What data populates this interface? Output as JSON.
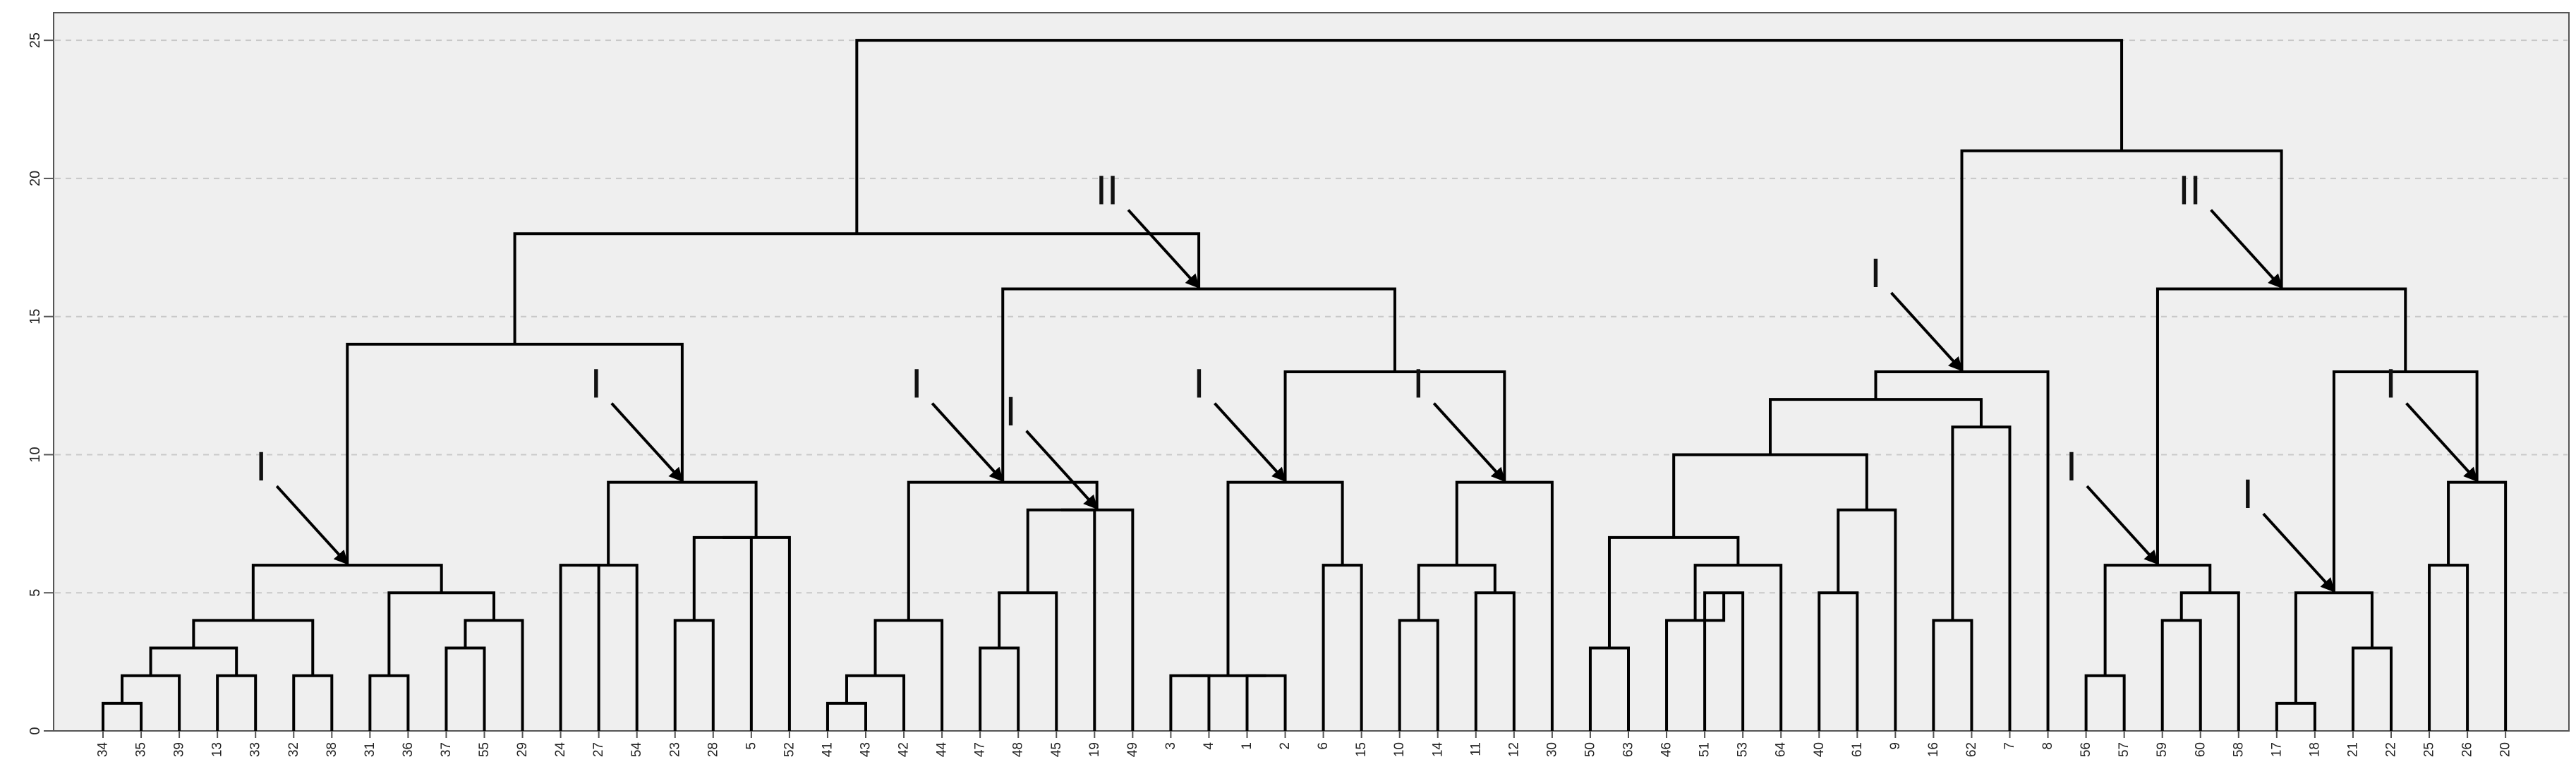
{
  "chart_data": {
    "type": "dendrogram",
    "title": "",
    "xlabel": "",
    "ylabel": "",
    "ylim": [
      0,
      26
    ],
    "y_ticks": [
      0,
      5,
      10,
      15,
      20,
      25
    ],
    "grid": true,
    "background": "#efefef",
    "line_color": "#000000",
    "grid_color": "#c8c8c8",
    "leaves": [
      "34",
      "35",
      "39",
      "13",
      "33",
      "32",
      "38",
      "31",
      "36",
      "37",
      "55",
      "29",
      "24",
      "27",
      "54",
      "23",
      "28",
      "5",
      "52",
      "41",
      "43",
      "42",
      "44",
      "47",
      "48",
      "45",
      "19",
      "49",
      "3",
      "4",
      "1",
      "2",
      "6",
      "15",
      "10",
      "14",
      "11",
      "12",
      "30",
      "50",
      "63",
      "46",
      "51",
      "53",
      "64",
      "40",
      "61",
      "9",
      "16",
      "62",
      "7",
      "8",
      "56",
      "57",
      "59",
      "60",
      "58",
      "17",
      "18",
      "21",
      "22",
      "25",
      "26",
      "20"
    ],
    "merges": [
      {
        "id": "a1",
        "children": [
          "34",
          "35"
        ],
        "height": 1
      },
      {
        "id": "a2",
        "children": [
          "a1",
          "39"
        ],
        "height": 2
      },
      {
        "id": "a3",
        "children": [
          "13",
          "33"
        ],
        "height": 2
      },
      {
        "id": "a4",
        "children": [
          "a2",
          "a3"
        ],
        "height": 3
      },
      {
        "id": "a5",
        "children": [
          "32",
          "38"
        ],
        "height": 2
      },
      {
        "id": "a6",
        "children": [
          "a4",
          "a5"
        ],
        "height": 4
      },
      {
        "id": "a7",
        "children": [
          "31",
          "36"
        ],
        "height": 2
      },
      {
        "id": "a8",
        "children": [
          "37",
          "55"
        ],
        "height": 3
      },
      {
        "id": "a9",
        "children": [
          "a8",
          "29"
        ],
        "height": 4
      },
      {
        "id": "a10",
        "children": [
          "a7",
          "a9"
        ],
        "height": 5
      },
      {
        "id": "A",
        "children": [
          "a6",
          "a10"
        ],
        "height": 6
      },
      {
        "id": "b1",
        "children": [
          "24",
          "27"
        ],
        "height": 6
      },
      {
        "id": "b2",
        "children": [
          "b1",
          "54"
        ],
        "height": 6
      },
      {
        "id": "b3",
        "children": [
          "23",
          "28"
        ],
        "height": 4
      },
      {
        "id": "b4",
        "children": [
          "b3",
          "5"
        ],
        "height": 7
      },
      {
        "id": "b5",
        "children": [
          "b4",
          "52"
        ],
        "height": 7
      },
      {
        "id": "B",
        "children": [
          "b2",
          "b5"
        ],
        "height": 9
      },
      {
        "id": "L",
        "children": [
          "A",
          "B"
        ],
        "height": 14
      },
      {
        "id": "c1",
        "children": [
          "41",
          "43"
        ],
        "height": 1
      },
      {
        "id": "c2",
        "children": [
          "c1",
          "42"
        ],
        "height": 2
      },
      {
        "id": "c3",
        "children": [
          "c2",
          "44"
        ],
        "height": 4
      },
      {
        "id": "c4",
        "children": [
          "47",
          "48"
        ],
        "height": 3
      },
      {
        "id": "c5",
        "children": [
          "c4",
          "45"
        ],
        "height": 5
      },
      {
        "id": "c6",
        "children": [
          "c5",
          "19"
        ],
        "height": 8
      },
      {
        "id": "c7",
        "children": [
          "c6",
          "49"
        ],
        "height": 8
      },
      {
        "id": "C",
        "children": [
          "c3",
          "c7"
        ],
        "height": 9
      },
      {
        "id": "d1",
        "children": [
          "3",
          "4"
        ],
        "height": 2
      },
      {
        "id": "d2",
        "children": [
          "1",
          "2"
        ],
        "height": 2
      },
      {
        "id": "d3",
        "children": [
          "d1",
          "d2"
        ],
        "height": 2
      },
      {
        "id": "d4",
        "children": [
          "6",
          "15"
        ],
        "height": 6
      },
      {
        "id": "D",
        "children": [
          "d3",
          "d4"
        ],
        "height": 9
      },
      {
        "id": "e1",
        "children": [
          "10",
          "14"
        ],
        "height": 4
      },
      {
        "id": "e2",
        "children": [
          "11",
          "12"
        ],
        "height": 5
      },
      {
        "id": "e3",
        "children": [
          "e1",
          "e2"
        ],
        "height": 6
      },
      {
        "id": "E",
        "children": [
          "e3",
          "30"
        ],
        "height": 9
      },
      {
        "id": "DE",
        "children": [
          "D",
          "E"
        ],
        "height": 13
      },
      {
        "id": "M",
        "children": [
          "C",
          "DE"
        ],
        "height": 16
      },
      {
        "id": "LEFT",
        "children": [
          "L",
          "M"
        ],
        "height": 18
      },
      {
        "id": "f1",
        "children": [
          "50",
          "63"
        ],
        "height": 3
      },
      {
        "id": "f2",
        "children": [
          "51",
          "53"
        ],
        "height": 5
      },
      {
        "id": "f3",
        "children": [
          "46",
          "f2"
        ],
        "height": 4
      },
      {
        "id": "f4",
        "children": [
          "f3",
          "64"
        ],
        "height": 6
      },
      {
        "id": "f5",
        "children": [
          "f1",
          "f4"
        ],
        "height": 7
      },
      {
        "id": "f6",
        "children": [
          "40",
          "61"
        ],
        "height": 5
      },
      {
        "id": "f7",
        "children": [
          "f6",
          "9"
        ],
        "height": 8
      },
      {
        "id": "f8",
        "children": [
          "f5",
          "f7"
        ],
        "height": 10
      },
      {
        "id": "f9",
        "children": [
          "16",
          "62"
        ],
        "height": 4
      },
      {
        "id": "f10",
        "children": [
          "f9",
          "7"
        ],
        "height": 11
      },
      {
        "id": "f11",
        "children": [
          "f8",
          "f10"
        ],
        "height": 12
      },
      {
        "id": "F",
        "children": [
          "f11",
          "8"
        ],
        "height": 13
      },
      {
        "id": "g1",
        "children": [
          "56",
          "57"
        ],
        "height": 2
      },
      {
        "id": "g2",
        "children": [
          "59",
          "60"
        ],
        "height": 4
      },
      {
        "id": "g3",
        "children": [
          "g2",
          "58"
        ],
        "height": 5
      },
      {
        "id": "G",
        "children": [
          "g1",
          "g3"
        ],
        "height": 6
      },
      {
        "id": "h1",
        "children": [
          "17",
          "18"
        ],
        "height": 1
      },
      {
        "id": "h2",
        "children": [
          "21",
          "22"
        ],
        "height": 3
      },
      {
        "id": "H",
        "children": [
          "h1",
          "h2"
        ],
        "height": 5
      },
      {
        "id": "i1",
        "children": [
          "25",
          "26"
        ],
        "height": 6
      },
      {
        "id": "I",
        "children": [
          "i1",
          "20"
        ],
        "height": 9
      },
      {
        "id": "HI",
        "children": [
          "H",
          "I"
        ],
        "height": 13
      },
      {
        "id": "N",
        "children": [
          "G",
          "HI"
        ],
        "height": 16
      },
      {
        "id": "RIGHT",
        "children": [
          "F",
          "N"
        ],
        "height": 21
      },
      {
        "id": "ROOT",
        "children": [
          "LEFT",
          "RIGHT"
        ],
        "height": 25
      }
    ],
    "annotations": [
      {
        "label": "I",
        "target": "A"
      },
      {
        "label": "I",
        "target": "B"
      },
      {
        "label": "I",
        "target": "C"
      },
      {
        "label": "I",
        "target": "c7"
      },
      {
        "label": "I",
        "target": "D"
      },
      {
        "label": "I",
        "target": "E"
      },
      {
        "label": "II",
        "target": "M"
      },
      {
        "label": "I",
        "target": "F"
      },
      {
        "label": "II",
        "target": "N"
      },
      {
        "label": "I",
        "target": "G"
      },
      {
        "label": "I",
        "target": "H"
      },
      {
        "label": "I",
        "target": "I"
      }
    ]
  }
}
